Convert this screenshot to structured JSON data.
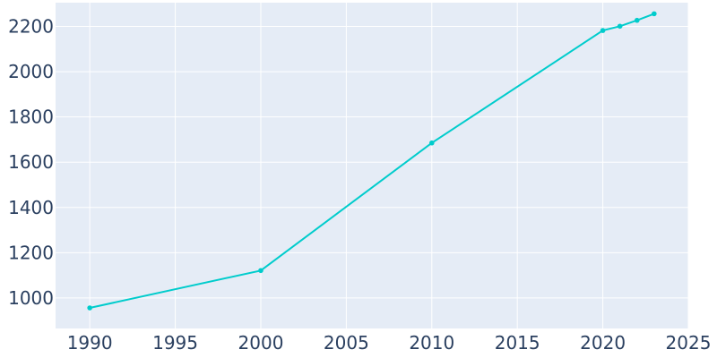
{
  "chart_data": {
    "type": "line",
    "title": "",
    "xlabel": "",
    "ylabel": "",
    "xlim": [
      1988,
      2025
    ],
    "ylim": [
      865,
      2305
    ],
    "x_ticks": [
      1990,
      1995,
      2000,
      2005,
      2010,
      2015,
      2020,
      2025
    ],
    "y_ticks": [
      1000,
      1200,
      1400,
      1600,
      1800,
      2000,
      2200
    ],
    "grid": true,
    "legend": "none",
    "series": [
      {
        "x": [
          1990,
          2000,
          2010,
          2020,
          2021,
          2022,
          2023
        ],
        "y": [
          956,
          1121,
          1685,
          2182,
          2201,
          2227,
          2256
        ]
      }
    ],
    "colors": {
      "line": "#00cccc",
      "plot_background": "#e5ecf6",
      "grid": "#ffffff",
      "tick_text": "#2a3f5f"
    }
  }
}
